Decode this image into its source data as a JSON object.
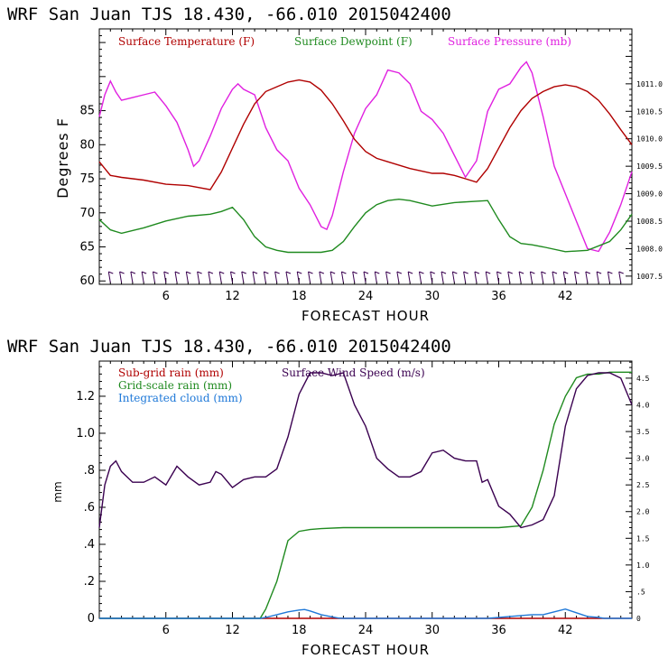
{
  "colors": {
    "temperature": "#b00000",
    "dewpoint": "#1f8a1f",
    "pressure": "#e020e0",
    "subgrid_rain": "#b00000",
    "wind_speed": "#3a0050",
    "gridscale_rain": "#1f8a1f",
    "cloud": "#1e78d8",
    "axis": "#000000"
  },
  "chart_data": [
    {
      "type": "line",
      "header": "WRF   San Juan TJS  18.430, -66.010  2015042400",
      "xlabel": "FORECAST HOUR",
      "ylabel": "Degrees F",
      "xlim": [
        0,
        48
      ],
      "ylim": [
        59.5,
        97
      ],
      "y2lim": [
        1007.35,
        1012.0
      ],
      "x_ticks": [
        6,
        12,
        18,
        24,
        30,
        36,
        42
      ],
      "x_tick_labels": [
        "6",
        "12",
        "18",
        "24",
        "30",
        "36",
        "42"
      ],
      "y_ticks": [
        60,
        65,
        70,
        75,
        80,
        85
      ],
      "y_tick_labels": [
        "60",
        "65",
        "70",
        "75",
        "80",
        "85"
      ],
      "y2_ticks": [
        1007.5,
        1008.0,
        1008.5,
        1009.0,
        1009.5,
        1010.0,
        1010.5,
        1011.0
      ],
      "y2_tick_labels": [
        "1007.5",
        "1008.0",
        "1008.5",
        "1009.0",
        "1009.5",
        "1010.0",
        "1010.5",
        "1011.0"
      ],
      "series": [
        {
          "name": "Surface Temperature (F)",
          "axis": "left",
          "x": [
            0,
            1,
            2,
            4,
            6,
            8,
            10,
            11,
            12,
            13,
            14,
            15,
            16,
            17,
            18,
            19,
            20,
            21,
            22,
            23,
            24,
            25,
            26,
            28,
            30,
            31,
            32,
            33,
            34,
            35,
            36,
            37,
            38,
            39,
            40,
            41,
            42,
            43,
            44,
            45,
            46,
            47,
            48
          ],
          "y": [
            77.5,
            75.5,
            75.2,
            74.8,
            74.2,
            74.0,
            73.4,
            76,
            79.5,
            83,
            86,
            87.8,
            88.5,
            89.2,
            89.5,
            89.2,
            88.0,
            86.0,
            83.5,
            80.8,
            79.0,
            78.0,
            77.5,
            76.5,
            75.8,
            75.8,
            75.5,
            75.0,
            74.5,
            76.5,
            79.5,
            82.5,
            85.0,
            86.8,
            87.8,
            88.5,
            88.8,
            88.5,
            87.8,
            86.5,
            84.5,
            82.2,
            80.0
          ]
        },
        {
          "name": "Surface Dewpoint (F)",
          "axis": "left",
          "x": [
            0,
            1,
            2,
            4,
            6,
            8,
            10,
            11,
            12,
            13,
            14,
            15,
            16,
            17,
            18,
            19,
            20,
            21,
            22,
            23,
            24,
            25,
            26,
            27,
            28,
            30,
            32,
            34,
            35,
            36,
            37,
            38,
            39,
            40,
            42,
            44,
            46,
            47,
            48
          ],
          "y": [
            69.0,
            67.5,
            67.0,
            67.8,
            68.8,
            69.5,
            69.8,
            70.2,
            70.8,
            69.0,
            66.5,
            65.0,
            64.5,
            64.2,
            64.2,
            64.2,
            64.2,
            64.5,
            65.8,
            68.0,
            70.0,
            71.2,
            71.8,
            72.0,
            71.8,
            71.0,
            71.5,
            71.7,
            71.8,
            69.0,
            66.5,
            65.5,
            65.3,
            65.0,
            64.3,
            64.5,
            65.8,
            67.5,
            69.8
          ]
        },
        {
          "name": "Surface Pressure (mb)",
          "axis": "right",
          "x": [
            0,
            0.5,
            1,
            1.5,
            2,
            3,
            4,
            5,
            6,
            7,
            8,
            8.5,
            9,
            10,
            11,
            12,
            12.5,
            13,
            14,
            15,
            16,
            17,
            18,
            19,
            20,
            20.5,
            21,
            22,
            23,
            24,
            25,
            26,
            27,
            28,
            29,
            30,
            31,
            32,
            33,
            34,
            35,
            36,
            37,
            38,
            38.5,
            39,
            40,
            41,
            42,
            43,
            44,
            45,
            46,
            47,
            48
          ],
          "y": [
            1010.4,
            1010.8,
            1011.05,
            1010.85,
            1010.7,
            1010.75,
            1010.8,
            1010.85,
            1010.6,
            1010.3,
            1009.8,
            1009.5,
            1009.6,
            1010.05,
            1010.55,
            1010.9,
            1011.0,
            1010.9,
            1010.8,
            1010.2,
            1009.8,
            1009.6,
            1009.1,
            1008.8,
            1008.4,
            1008.35,
            1008.6,
            1009.4,
            1010.1,
            1010.55,
            1010.8,
            1011.25,
            1011.2,
            1011.0,
            1010.5,
            1010.35,
            1010.1,
            1009.7,
            1009.3,
            1009.6,
            1010.5,
            1010.9,
            1011.0,
            1011.3,
            1011.4,
            1011.2,
            1010.4,
            1009.5,
            1009.0,
            1008.5,
            1008.0,
            1007.95,
            1008.3,
            1008.8,
            1009.4
          ]
        }
      ]
    },
    {
      "type": "line",
      "header": "WRF   San Juan TJS  18.430, -66.010  2015042400",
      "xlabel": "FORECAST HOUR",
      "ylabel": "mm",
      "xlim": [
        0,
        48
      ],
      "ylim": [
        0,
        1.39
      ],
      "y2lim": [
        0,
        4.82
      ],
      "x_ticks": [
        6,
        12,
        18,
        24,
        30,
        36,
        42
      ],
      "x_tick_labels": [
        "6",
        "12",
        "18",
        "24",
        "30",
        "36",
        "42"
      ],
      "y_ticks": [
        0,
        0.2,
        0.4,
        0.6,
        0.8,
        1.0,
        1.2
      ],
      "y_tick_labels": [
        "0",
        ".2",
        ".4",
        ".6",
        ".8",
        "1.0",
        "1.2"
      ],
      "y2_ticks": [
        0,
        0.5,
        1.0,
        1.5,
        2.0,
        2.5,
        3.0,
        3.5,
        4.0,
        4.5
      ],
      "y2_tick_labels": [
        "0",
        ".5",
        "1.0",
        "1.5",
        "2.0",
        "2.5",
        "3.0",
        "3.5",
        "4.0",
        "4.5"
      ],
      "series": [
        {
          "name": "Sub-grid rain (mm)",
          "axis": "left",
          "x": [
            0,
            48
          ],
          "y": [
            0,
            0
          ]
        },
        {
          "name": "Surface Wind Speed (m/s)",
          "axis": "right",
          "x": [
            0,
            0.5,
            1,
            1.5,
            2,
            3,
            4,
            5,
            6,
            7,
            8,
            9,
            10,
            10.5,
            11,
            12,
            13,
            14,
            15,
            16,
            17,
            18,
            19,
            20,
            21,
            22,
            23,
            24,
            25,
            26,
            27,
            28,
            29,
            30,
            31,
            32,
            33,
            34,
            34.5,
            35,
            36,
            37,
            38,
            39,
            40,
            41,
            42,
            43,
            44,
            45,
            46,
            47,
            48
          ],
          "y": [
            1.7,
            2.5,
            2.85,
            2.95,
            2.75,
            2.55,
            2.55,
            2.65,
            2.5,
            2.85,
            2.65,
            2.5,
            2.55,
            2.75,
            2.7,
            2.45,
            2.6,
            2.65,
            2.65,
            2.8,
            3.4,
            4.2,
            4.6,
            4.6,
            4.55,
            4.6,
            4.0,
            3.6,
            3.0,
            2.8,
            2.65,
            2.65,
            2.75,
            3.1,
            3.15,
            3.0,
            2.95,
            2.95,
            2.55,
            2.6,
            2.1,
            1.95,
            1.7,
            1.75,
            1.85,
            2.3,
            3.6,
            4.3,
            4.55,
            4.6,
            4.6,
            4.5,
            4.0
          ]
        },
        {
          "name": "Grid-scale rain (mm)",
          "axis": "left",
          "x": [
            0,
            14.5,
            15,
            16,
            17,
            18,
            19,
            20,
            22,
            24,
            30,
            36,
            38,
            39,
            40,
            41,
            42,
            43,
            44,
            45,
            46,
            47,
            48
          ],
          "y": [
            0,
            0,
            0.05,
            0.2,
            0.42,
            0.47,
            0.48,
            0.485,
            0.49,
            0.49,
            0.49,
            0.49,
            0.5,
            0.6,
            0.8,
            1.05,
            1.2,
            1.3,
            1.32,
            1.32,
            1.33,
            1.33,
            1.33
          ]
        },
        {
          "name": "Integrated cloud (mm)",
          "axis": "left",
          "x": [
            0,
            14.5,
            15,
            16,
            17,
            18,
            18.5,
            19,
            20,
            21,
            21.5,
            22,
            35,
            36,
            37,
            38,
            39,
            40,
            41,
            42,
            43,
            44,
            45,
            45.5,
            48
          ],
          "y": [
            0,
            0,
            0.005,
            0.02,
            0.035,
            0.045,
            0.048,
            0.04,
            0.02,
            0.008,
            0.002,
            0,
            0,
            0.005,
            0.01,
            0.015,
            0.02,
            0.02,
            0.035,
            0.05,
            0.03,
            0.01,
            0.005,
            0,
            0
          ]
        }
      ]
    }
  ]
}
